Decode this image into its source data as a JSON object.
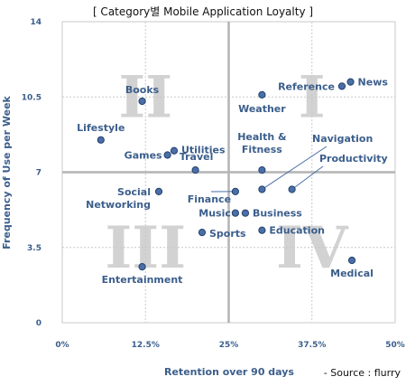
{
  "chart_data": {
    "type": "scatter",
    "title": "[ Category별 Mobile Application Loyalty ]",
    "xlabel": "Retention over 90 days",
    "ylabel": "Frequency of Use per Week",
    "xlim": [
      0,
      50
    ],
    "ylim": [
      0,
      14
    ],
    "x_ticks": [
      "0%",
      "12.5%",
      "25%",
      "37.5%",
      "50%"
    ],
    "y_ticks": [
      "0",
      "3.5",
      "7",
      "10.5",
      "14"
    ],
    "quadrant_labels": [
      "II",
      "I",
      "III",
      "IV"
    ],
    "source": "- Source : flurry",
    "grid": "dashed at 12.5%, 37.5%, 3.5, 10.5; solid dividers at 25% and 7",
    "marker_color": "#4a6fa8",
    "points": [
      {
        "label": "Books",
        "x": 12,
        "y": 10.3
      },
      {
        "label": "Lifestyle",
        "x": 5.8,
        "y": 8.5
      },
      {
        "label": "Games",
        "x": 15.8,
        "y": 7.8
      },
      {
        "label": "Utilities",
        "x": 16.8,
        "y": 8.0
      },
      {
        "label": "Travel",
        "x": 20,
        "y": 7.1
      },
      {
        "label": "Social Networking",
        "x": 14.5,
        "y": 6.1
      },
      {
        "label": "Finance",
        "x": 26,
        "y": 6.1
      },
      {
        "label": "Music",
        "x": 26,
        "y": 5.1
      },
      {
        "label": "Business",
        "x": 27.5,
        "y": 5.1
      },
      {
        "label": "Sports",
        "x": 21,
        "y": 4.2
      },
      {
        "label": "Entertainment",
        "x": 12,
        "y": 2.6
      },
      {
        "label": "Weather",
        "x": 30,
        "y": 10.6
      },
      {
        "label": "Reference",
        "x": 42,
        "y": 11.0
      },
      {
        "label": "News",
        "x": 43.3,
        "y": 11.2
      },
      {
        "label": "Health & Fitness",
        "x": 30,
        "y": 7.1
      },
      {
        "label": "Navigation",
        "x": 30,
        "y": 6.2
      },
      {
        "label": "Productivity",
        "x": 34.5,
        "y": 6.2
      },
      {
        "label": "Education",
        "x": 30,
        "y": 4.3
      },
      {
        "label": "Medical",
        "x": 43.5,
        "y": 2.9
      }
    ]
  }
}
